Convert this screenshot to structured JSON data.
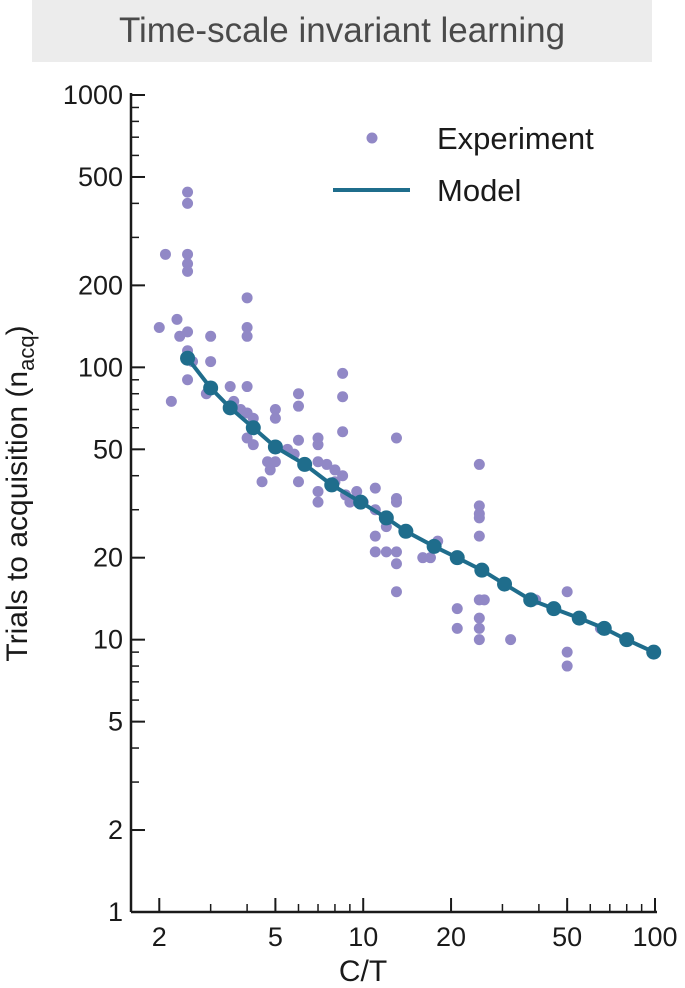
{
  "chart_data": {
    "type": "scatter",
    "title": "Time-scale invariant learning",
    "xlabel": "C/T",
    "ylabel_main": "Trials to acquisition (n",
    "ylabel_sub": "acq",
    "ylabel_close": ")",
    "x_scale": "log",
    "y_scale": "log",
    "xlim": [
      1.6,
      100
    ],
    "ylim": [
      1,
      1000
    ],
    "x_ticks": [
      2,
      5,
      10,
      20,
      50,
      100
    ],
    "x_tick_labels": [
      "2",
      "5",
      "10",
      "20",
      "50",
      "100"
    ],
    "y_ticks": [
      1,
      2,
      5,
      10,
      20,
      50,
      100,
      200,
      500,
      1000
    ],
    "y_tick_labels": [
      "1",
      "2",
      "5",
      "10",
      "20",
      "50",
      "100",
      "200",
      "500",
      "1000"
    ],
    "grid": false,
    "legend_position": "top-right",
    "series": [
      {
        "name": "Experiment",
        "kind": "scatter",
        "color": "#9188c6",
        "points": [
          [
            2.0,
            140
          ],
          [
            2.1,
            260
          ],
          [
            2.2,
            75
          ],
          [
            2.3,
            150
          ],
          [
            2.35,
            130
          ],
          [
            2.5,
            440
          ],
          [
            2.5,
            400
          ],
          [
            2.5,
            260
          ],
          [
            2.5,
            240
          ],
          [
            2.5,
            225
          ],
          [
            2.5,
            135
          ],
          [
            2.5,
            115
          ],
          [
            2.5,
            108
          ],
          [
            2.5,
            90
          ],
          [
            2.6,
            105
          ],
          [
            2.9,
            80
          ],
          [
            3.0,
            130
          ],
          [
            3.0,
            105
          ],
          [
            3.5,
            85
          ],
          [
            3.6,
            75
          ],
          [
            3.8,
            70
          ],
          [
            4.0,
            180
          ],
          [
            4.0,
            140
          ],
          [
            4.0,
            130
          ],
          [
            4.0,
            85
          ],
          [
            4.0,
            68
          ],
          [
            4.0,
            55
          ],
          [
            4.2,
            65
          ],
          [
            4.2,
            52
          ],
          [
            4.5,
            38
          ],
          [
            4.7,
            45
          ],
          [
            4.8,
            42
          ],
          [
            5.0,
            70
          ],
          [
            5.0,
            65
          ],
          [
            5.0,
            45
          ],
          [
            5.5,
            50
          ],
          [
            5.8,
            48
          ],
          [
            6.0,
            80
          ],
          [
            6.0,
            72
          ],
          [
            6.0,
            54
          ],
          [
            6.0,
            38
          ],
          [
            7.0,
            55
          ],
          [
            7.0,
            52
          ],
          [
            7.0,
            45
          ],
          [
            7.0,
            35
          ],
          [
            7.0,
            32
          ],
          [
            7.5,
            44
          ],
          [
            8.0,
            42
          ],
          [
            8.0,
            38
          ],
          [
            8.5,
            95
          ],
          [
            8.5,
            78
          ],
          [
            8.5,
            58
          ],
          [
            8.5,
            40
          ],
          [
            8.7,
            34
          ],
          [
            9.0,
            32
          ],
          [
            9.5,
            35
          ],
          [
            10.0,
            32
          ],
          [
            11.0,
            36
          ],
          [
            11.0,
            30
          ],
          [
            11.0,
            24
          ],
          [
            11.0,
            21
          ],
          [
            12.0,
            26
          ],
          [
            12.0,
            21
          ],
          [
            13.0,
            55
          ],
          [
            13.0,
            33
          ],
          [
            13.0,
            32
          ],
          [
            13.0,
            21
          ],
          [
            13.0,
            19
          ],
          [
            13.0,
            15
          ],
          [
            14.0,
            25
          ],
          [
            16.0,
            20
          ],
          [
            17.0,
            20
          ],
          [
            18.0,
            23
          ],
          [
            21.0,
            13
          ],
          [
            21.0,
            11
          ],
          [
            25.0,
            44
          ],
          [
            25.0,
            31
          ],
          [
            25.0,
            29
          ],
          [
            25.0,
            28
          ],
          [
            25.0,
            24
          ],
          [
            25.0,
            14
          ],
          [
            25.0,
            12
          ],
          [
            25.0,
            11
          ],
          [
            25.0,
            10
          ],
          [
            26.0,
            14
          ],
          [
            32.0,
            10
          ],
          [
            39.0,
            14
          ],
          [
            50.0,
            15
          ],
          [
            50.0,
            9
          ],
          [
            50.0,
            8
          ],
          [
            65.0,
            11
          ]
        ]
      },
      {
        "name": "Model",
        "kind": "line",
        "color": "#1f6d8c",
        "points": [
          [
            2.5,
            108
          ],
          [
            3.0,
            84
          ],
          [
            3.5,
            71
          ],
          [
            4.2,
            60
          ],
          [
            5.0,
            51
          ],
          [
            6.3,
            44
          ],
          [
            7.8,
            37
          ],
          [
            9.8,
            32
          ],
          [
            12.0,
            28
          ],
          [
            14.0,
            25
          ],
          [
            17.5,
            22
          ],
          [
            21.0,
            20
          ],
          [
            25.5,
            18
          ],
          [
            30.5,
            16
          ],
          [
            37.5,
            14
          ],
          [
            45.0,
            13
          ],
          [
            55.0,
            12
          ],
          [
            67.0,
            11
          ],
          [
            80.0,
            10
          ],
          [
            99.0,
            9
          ]
        ]
      }
    ]
  }
}
